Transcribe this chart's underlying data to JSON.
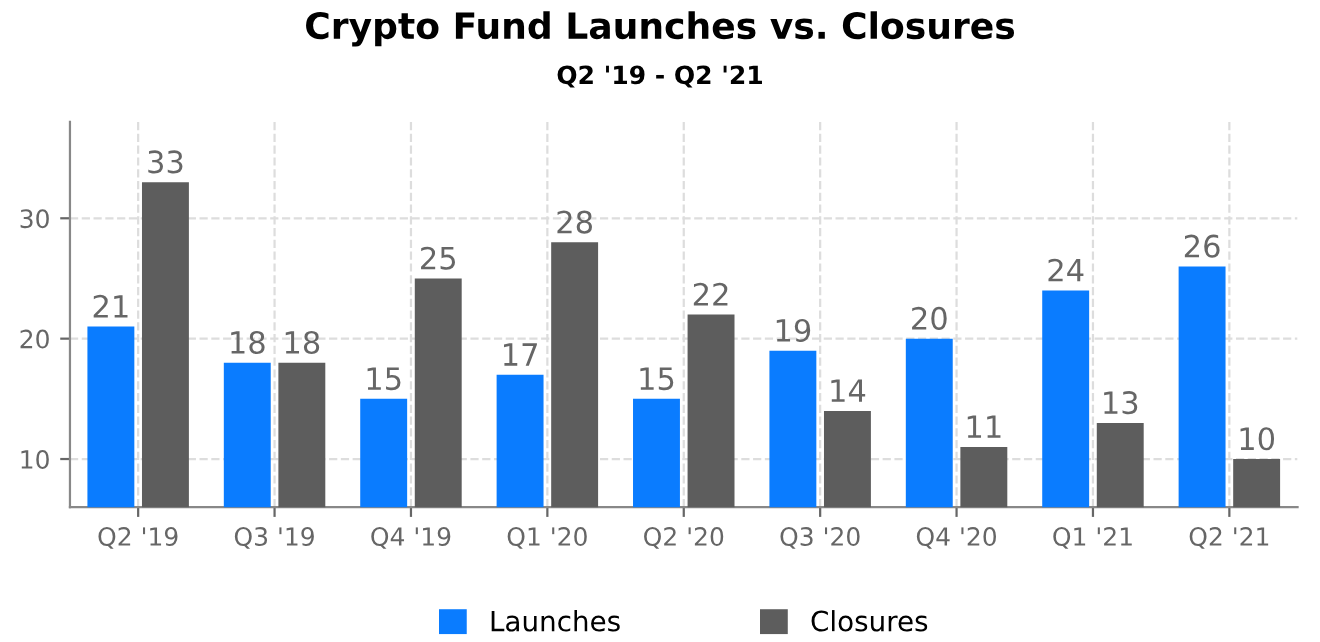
{
  "chart_data": {
    "type": "bar",
    "title": "Crypto Fund Launches vs. Closures",
    "subtitle": "Q2 '19 - Q2 '21",
    "categories": [
      "Q2 '19",
      "Q3 '19",
      "Q4 '19",
      "Q1 '20",
      "Q2 '20",
      "Q3 '20",
      "Q4 '20",
      "Q1 '21",
      "Q2 '21"
    ],
    "series": [
      {
        "name": "Launches",
        "color": "#0a7cff",
        "values": [
          21,
          18,
          15,
          17,
          15,
          19,
          20,
          24,
          26
        ]
      },
      {
        "name": "Closures",
        "color": "#5d5d5d",
        "values": [
          33,
          18,
          25,
          28,
          22,
          14,
          11,
          13,
          10
        ]
      }
    ],
    "ylim": [
      6,
      38
    ],
    "yticks": [
      10,
      20,
      30
    ],
    "grid": true,
    "legend": "bottom",
    "data_labels": true
  }
}
